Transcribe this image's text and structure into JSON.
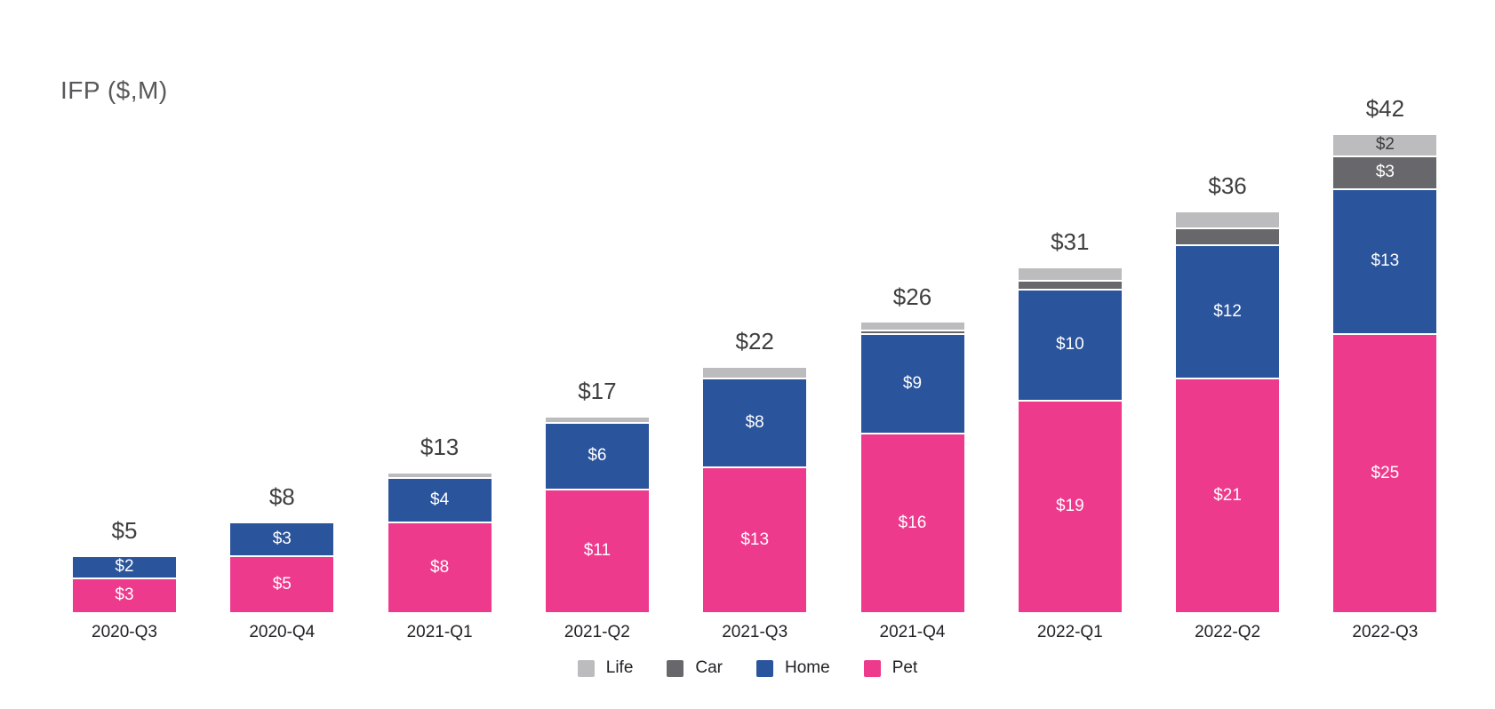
{
  "title": "IFP ($,M)",
  "colors": {
    "pet": "#ee3a8c",
    "home": "#2a549b",
    "car": "#68686c",
    "life": "#bcbcbe",
    "life_label_text": "#3d3d3d",
    "segment_label_text": "#ffffff",
    "total_label_text": "#3f3f3f",
    "axis_label_text": "#202124",
    "title_text": "#58585a"
  },
  "legend": [
    {
      "name": "Life",
      "color_key": "life"
    },
    {
      "name": "Car",
      "color_key": "car"
    },
    {
      "name": "Home",
      "color_key": "home"
    },
    {
      "name": "Pet",
      "color_key": "pet"
    }
  ],
  "chart_data": {
    "type": "bar",
    "stacked": true,
    "title": "IFP ($,M)",
    "unit": "$M",
    "grid": false,
    "legend_position": "bottom",
    "categories": [
      "2020-Q3",
      "2020-Q4",
      "2021-Q1",
      "2021-Q2",
      "2021-Q3",
      "2021-Q4",
      "2022-Q1",
      "2022-Q2",
      "2022-Q3"
    ],
    "total_labels": [
      "$5",
      "$8",
      "$13",
      "$17",
      "$22",
      "$26",
      "$31",
      "$36",
      "$42"
    ],
    "series": [
      {
        "name": "Pet",
        "color_key": "pet",
        "values": [
          3,
          5,
          8,
          11,
          13,
          16,
          19,
          21,
          25
        ],
        "labels": [
          "$3",
          "$5",
          "$8",
          "$11",
          "$13",
          "$16",
          "$19",
          "$21",
          "$25"
        ]
      },
      {
        "name": "Home",
        "color_key": "home",
        "values": [
          2,
          3,
          4,
          6,
          8,
          9,
          10,
          12,
          13
        ],
        "labels": [
          "$2",
          "$3",
          "$4",
          "$6",
          "$8",
          "$9",
          "$10",
          "$12",
          "$13"
        ]
      },
      {
        "name": "Car",
        "color_key": "car",
        "values": [
          0,
          0,
          0,
          0,
          0,
          0.2,
          0.8,
          1.5,
          3
        ],
        "labels": [
          null,
          null,
          null,
          null,
          null,
          null,
          null,
          null,
          "$3"
        ]
      },
      {
        "name": "Life",
        "color_key": "life",
        "values": [
          0,
          0,
          0.5,
          0.5,
          1,
          0.8,
          1.2,
          1.5,
          2
        ],
        "labels": [
          null,
          null,
          null,
          null,
          null,
          null,
          null,
          null,
          "$2"
        ]
      }
    ]
  }
}
